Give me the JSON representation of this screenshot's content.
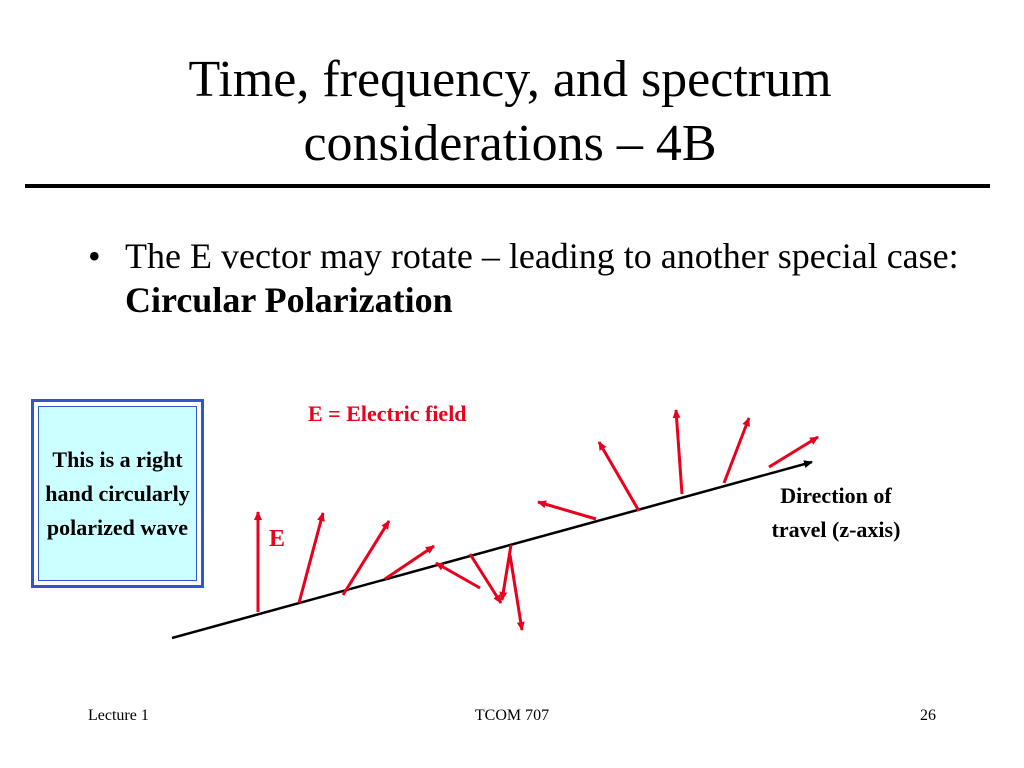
{
  "slide": {
    "title": "Time, frequency, and spectrum considerations – 4B",
    "bullet_marker": "•",
    "bullet_text": "The E vector may rotate – leading to another special case: ",
    "bullet_bold": "Circular Polarization"
  },
  "callout": {
    "text": "This is a right hand circularly polarized wave"
  },
  "diagram": {
    "legend": "E = Electric field",
    "e_label": "E",
    "direction_label": "Direction of travel (z-axis)",
    "colors": {
      "vector": "#e8001c",
      "axis": "#000000",
      "callout_border": "#3355cc",
      "callout_fill": "#ccffff"
    }
  },
  "footer": {
    "left": "Lecture 1",
    "center": "TCOM 707",
    "right": "26"
  }
}
